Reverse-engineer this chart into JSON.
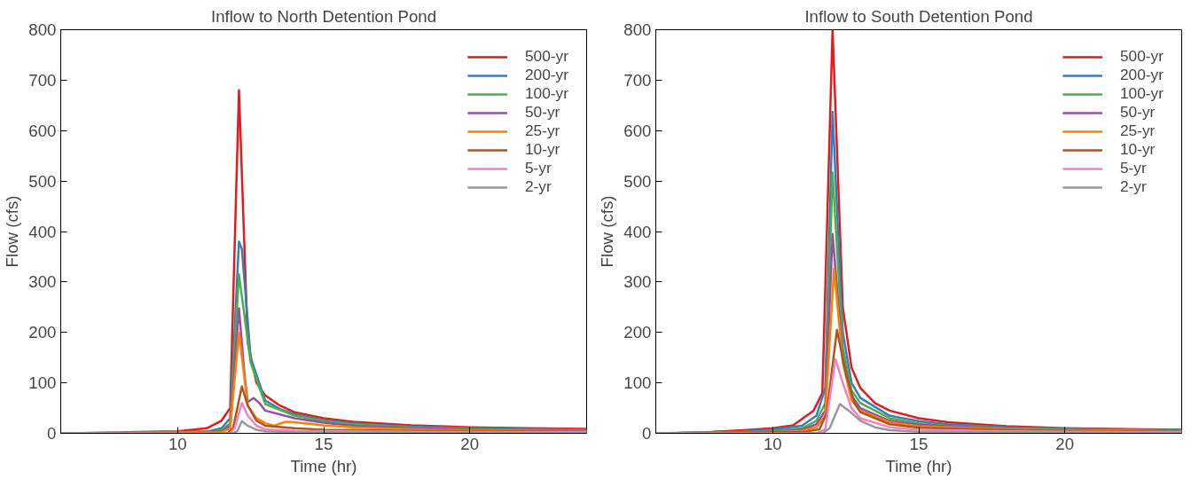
{
  "chart_data": [
    {
      "type": "line",
      "title": "Inflow to North Detention Pond",
      "xlabel": "Time (hr)",
      "ylabel": "Flow (cfs)",
      "xlim": [
        6,
        24
      ],
      "ylim": [
        0,
        800
      ],
      "xticks": [
        10,
        15,
        20
      ],
      "yticks": [
        0,
        100,
        200,
        300,
        400,
        500,
        600,
        700,
        800
      ],
      "grid": false,
      "legend": "top right",
      "marker": "none",
      "line_style": "solid",
      "series": [
        {
          "name": "500-yr",
          "color": "#e41a1c",
          "x": [
            6,
            8,
            8.2,
            10,
            11,
            11.5,
            11.8,
            12.1,
            12.4,
            12.7,
            13,
            13.5,
            14,
            15,
            16,
            18,
            20,
            22,
            24
          ],
          "values": [
            0,
            0,
            2,
            4,
            10,
            25,
            50,
            680,
            180,
            100,
            75,
            55,
            42,
            30,
            23,
            16,
            12,
            10,
            9
          ]
        },
        {
          "name": "200-yr",
          "color": "#377eb8",
          "x": [
            6,
            11,
            11.5,
            11.8,
            12.1,
            12.2,
            12.5,
            13,
            13.5,
            14,
            15,
            16,
            18,
            20,
            24
          ],
          "values": [
            0,
            3,
            10,
            30,
            380,
            365,
            150,
            65,
            48,
            38,
            26,
            20,
            13,
            10,
            7
          ]
        },
        {
          "name": "100-yr",
          "color": "#4daf4a",
          "x": [
            6,
            11,
            11.5,
            11.8,
            12.1,
            12.5,
            13,
            14,
            15,
            16,
            18,
            20,
            24
          ],
          "values": [
            0,
            2,
            6,
            20,
            315,
            140,
            58,
            35,
            24,
            18,
            12,
            9,
            6
          ]
        },
        {
          "name": "50-yr",
          "color": "#984ea3",
          "x": [
            6,
            11.5,
            11.8,
            12.1,
            12.3,
            12.4,
            12.6,
            12.8,
            13,
            14,
            15,
            16,
            18,
            20,
            24
          ],
          "values": [
            0,
            4,
            15,
            248,
            110,
            62,
            70,
            60,
            45,
            30,
            21,
            15,
            10,
            8,
            5
          ]
        },
        {
          "name": "25-yr",
          "color": "#ff7f00",
          "x": [
            6,
            11.5,
            11.8,
            12.1,
            12.4,
            12.7,
            13,
            13.3,
            13.7,
            14,
            15,
            16,
            18,
            20,
            24
          ],
          "values": [
            0,
            2,
            10,
            200,
            55,
            30,
            20,
            15,
            23,
            22,
            16,
            12,
            8,
            6,
            4
          ]
        },
        {
          "name": "10-yr",
          "color": "#a65628",
          "x": [
            6,
            11.7,
            11.9,
            12.2,
            12.4,
            12.7,
            13,
            14,
            15,
            18,
            24
          ],
          "values": [
            0,
            0,
            10,
            93,
            55,
            25,
            15,
            10,
            7,
            5,
            3
          ]
        },
        {
          "name": "5-yr",
          "color": "#f781bf",
          "x": [
            6,
            11.8,
            11.95,
            12.2,
            12.4,
            12.7,
            13,
            14,
            18,
            24
          ],
          "values": [
            0,
            0,
            10,
            60,
            35,
            15,
            8,
            5,
            3,
            2
          ]
        },
        {
          "name": "2-yr",
          "color": "#999999",
          "x": [
            6,
            11.9,
            12.05,
            12.2,
            12.4,
            12.7,
            13,
            14,
            24
          ],
          "values": [
            0,
            0,
            5,
            24,
            15,
            7,
            4,
            2,
            1
          ]
        }
      ]
    },
    {
      "type": "line",
      "title": "Inflow to South Detention Pond",
      "xlabel": "Time (hr)",
      "ylabel": "Flow (cfs)",
      "xlim": [
        6,
        24
      ],
      "ylim": [
        0,
        800
      ],
      "xticks": [
        10,
        15,
        20
      ],
      "yticks": [
        0,
        100,
        200,
        300,
        400,
        500,
        600,
        700,
        800
      ],
      "grid": false,
      "legend": "top right",
      "marker": "none",
      "line_style": "solid",
      "series": [
        {
          "name": "500-yr",
          "color": "#e41a1c",
          "x": [
            6,
            7.8,
            8,
            9,
            10,
            10.7,
            11.4,
            11.7,
            12.05,
            12.4,
            12.7,
            13,
            13.5,
            14,
            15,
            16,
            18,
            20,
            24
          ],
          "values": [
            0,
            0,
            3,
            6,
            10,
            16,
            45,
            80,
            800,
            250,
            130,
            90,
            60,
            45,
            30,
            22,
            14,
            10,
            7
          ]
        },
        {
          "name": "200-yr",
          "color": "#377eb8",
          "x": [
            6,
            9,
            10,
            11,
            11.5,
            11.8,
            12.05,
            12.4,
            12.7,
            13,
            14,
            15,
            16,
            18,
            20,
            24
          ],
          "values": [
            0,
            4,
            8,
            15,
            35,
            90,
            637,
            200,
            100,
            70,
            35,
            24,
            18,
            12,
            9,
            6
          ]
        },
        {
          "name": "100-yr",
          "color": "#4daf4a",
          "x": [
            6,
            9,
            10,
            11,
            11.5,
            11.8,
            12.05,
            12.4,
            12.7,
            13,
            14,
            15,
            16,
            18,
            20,
            24
          ],
          "values": [
            0,
            2,
            5,
            10,
            25,
            60,
            517,
            170,
            85,
            60,
            30,
            20,
            15,
            10,
            8,
            5
          ]
        },
        {
          "name": "50-yr",
          "color": "#984ea3",
          "x": [
            6,
            10,
            11,
            11.5,
            11.8,
            12.05,
            12.4,
            12.7,
            13,
            14,
            15,
            18,
            24
          ],
          "values": [
            0,
            3,
            7,
            18,
            45,
            395,
            150,
            75,
            50,
            25,
            17,
            9,
            4
          ]
        },
        {
          "name": "25-yr",
          "color": "#ff7f00",
          "x": [
            6,
            10,
            11,
            11.5,
            11.8,
            12.1,
            12.4,
            12.7,
            13,
            14,
            15,
            18,
            24
          ],
          "values": [
            0,
            2,
            5,
            12,
            35,
            327,
            140,
            65,
            45,
            22,
            14,
            8,
            4
          ]
        },
        {
          "name": "10-yr",
          "color": "#a65628",
          "x": [
            6,
            11,
            11.6,
            11.85,
            12.2,
            12.5,
            12.8,
            13,
            14,
            15,
            18,
            24
          ],
          "values": [
            0,
            2,
            8,
            40,
            205,
            120,
            60,
            42,
            18,
            11,
            6,
            3
          ]
        },
        {
          "name": "5-yr",
          "color": "#f781bf",
          "x": [
            6,
            11.5,
            11.8,
            12.15,
            12.4,
            12.7,
            13,
            14,
            15,
            18,
            24
          ],
          "values": [
            0,
            0,
            8,
            147,
            100,
            50,
            30,
            12,
            7,
            4,
            2
          ]
        },
        {
          "name": "2-yr",
          "color": "#999999",
          "x": [
            6,
            11.7,
            11.95,
            12.3,
            12.6,
            13,
            13.5,
            14,
            15,
            18,
            24
          ],
          "values": [
            0,
            0,
            10,
            58,
            45,
            25,
            12,
            6,
            3,
            2,
            1
          ]
        }
      ]
    }
  ]
}
